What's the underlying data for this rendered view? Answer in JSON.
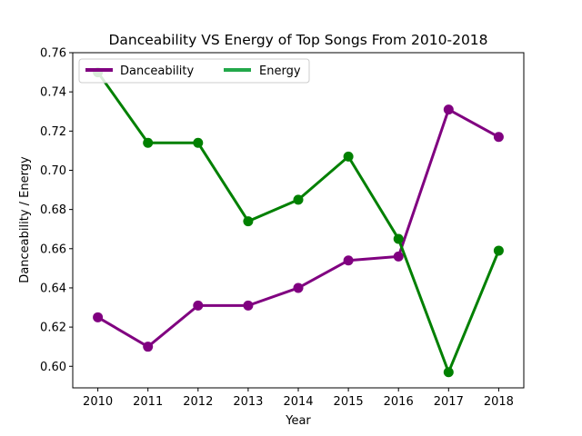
{
  "chart_data": {
    "type": "line",
    "title": "Danceability VS Energy of Top Songs From 2010-2018",
    "xlabel": "Year",
    "ylabel": "Danceability / Energy",
    "x": [
      2010,
      2011,
      2012,
      2013,
      2014,
      2015,
      2016,
      2017,
      2018
    ],
    "x_tick_labels": [
      "2010",
      "2011",
      "2012",
      "2013",
      "2014",
      "2015",
      "2016",
      "2017",
      "2018"
    ],
    "ylim": [
      0.589,
      0.76
    ],
    "y_ticks": [
      0.6,
      0.62,
      0.64,
      0.66,
      0.68,
      0.7,
      0.72,
      0.74,
      0.76
    ],
    "y_tick_labels": [
      "0.60",
      "0.62",
      "0.64",
      "0.66",
      "0.68",
      "0.70",
      "0.72",
      "0.74",
      "0.76"
    ],
    "grid": false,
    "legend_position": "top-left",
    "series": [
      {
        "name": "Danceability",
        "color": "#800080",
        "values": [
          0.625,
          0.61,
          0.631,
          0.631,
          0.64,
          0.654,
          0.656,
          0.731,
          0.717
        ]
      },
      {
        "name": "Energy",
        "color": "#008000",
        "values": [
          0.75,
          0.714,
          0.714,
          0.674,
          0.685,
          0.707,
          0.665,
          0.597,
          0.659
        ]
      }
    ],
    "legend_colors": [
      "#800080",
      "#22a84a"
    ]
  }
}
